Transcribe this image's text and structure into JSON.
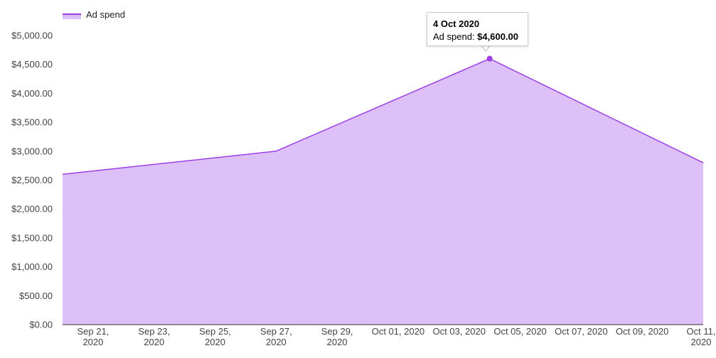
{
  "legend": {
    "label": "Ad spend",
    "color": "#9d3fe7"
  },
  "tooltip": {
    "title": "4 Oct 2020",
    "series_label": "Ad spend:",
    "value": "$4,600.00"
  },
  "colors": {
    "line": "#9d3fe7",
    "fill": "#dcc0f7",
    "axis": "#333333"
  },
  "chart_data": {
    "type": "area",
    "x": [
      "2020-09-20",
      "2020-09-27",
      "2020-10-04",
      "2020-10-11"
    ],
    "series": [
      {
        "name": "Ad spend",
        "values": [
          2600,
          3000,
          4600,
          2800
        ]
      }
    ],
    "ylim": [
      0,
      5000
    ],
    "y_ticks": [
      0,
      500,
      1000,
      1500,
      2000,
      2500,
      3000,
      3500,
      4000,
      4500,
      5000
    ],
    "y_tick_labels": [
      "$0.00",
      "$500.00",
      "$1,000.00",
      "$1,500.00",
      "$2,000.00",
      "$2,500.00",
      "$3,000.00",
      "$3,500.00",
      "$4,000.00",
      "$4,500.00",
      "$5,000.00"
    ],
    "x_ticks": [
      {
        "date": "2020-09-21",
        "label": [
          "Sep 21,",
          "2020"
        ]
      },
      {
        "date": "2020-09-23",
        "label": [
          "Sep 23,",
          "2020"
        ]
      },
      {
        "date": "2020-09-25",
        "label": [
          "Sep 25,",
          "2020"
        ]
      },
      {
        "date": "2020-09-27",
        "label": [
          "Sep 27,",
          "2020"
        ]
      },
      {
        "date": "2020-09-29",
        "label": [
          "Sep 29,",
          "2020"
        ]
      },
      {
        "date": "2020-10-01",
        "label": [
          "Oct 01, 2020"
        ]
      },
      {
        "date": "2020-10-03",
        "label": [
          "Oct 03, 2020"
        ]
      },
      {
        "date": "2020-10-05",
        "label": [
          "Oct 05, 2020"
        ]
      },
      {
        "date": "2020-10-07",
        "label": [
          "Oct 07, 2020"
        ]
      },
      {
        "date": "2020-10-09",
        "label": [
          "Oct 09, 2020"
        ]
      },
      {
        "date": "2020-10-11",
        "label": [
          "Oct 11,",
          "2020"
        ]
      }
    ],
    "highlighted_point": {
      "x": "2020-10-04",
      "y": 4600
    },
    "grid": false,
    "legend_position": "top-left"
  }
}
